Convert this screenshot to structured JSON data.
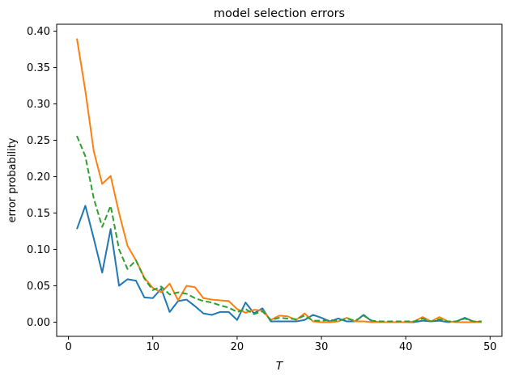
{
  "figure": {
    "title": "model selection errors",
    "xlabel": "T",
    "ylabel": "error probability"
  },
  "chart_data": {
    "type": "line",
    "title": "model selection errors",
    "xlabel": "T",
    "ylabel": "error probability",
    "xlim": [
      -1.4,
      51.4
    ],
    "ylim": [
      -0.0195,
      0.4095
    ],
    "x_tick_values": [
      0,
      10,
      20,
      30,
      40,
      50
    ],
    "x_tick_labels": [
      "0",
      "10",
      "20",
      "30",
      "40",
      "50"
    ],
    "y_tick_values": [
      0.0,
      0.05,
      0.1,
      0.15,
      0.2,
      0.25,
      0.3,
      0.35,
      0.4
    ],
    "y_tick_labels": [
      "0.00",
      "0.05",
      "0.10",
      "0.15",
      "0.20",
      "0.25",
      "0.30",
      "0.35",
      "0.40"
    ],
    "grid": false,
    "legend_position": "none",
    "x": [
      1,
      2,
      3,
      4,
      5,
      6,
      7,
      8,
      9,
      10,
      11,
      12,
      13,
      14,
      15,
      16,
      17,
      18,
      19,
      20,
      21,
      22,
      23,
      24,
      25,
      26,
      27,
      28,
      29,
      30,
      31,
      32,
      33,
      34,
      35,
      36,
      37,
      38,
      39,
      40,
      41,
      42,
      43,
      44,
      45,
      46,
      47,
      48,
      49
    ],
    "series": [
      {
        "name": "series-blue",
        "color": "#1f77b4",
        "style": "solid",
        "values": [
          0.128,
          0.16,
          0.115,
          0.068,
          0.128,
          0.05,
          0.059,
          0.057,
          0.034,
          0.033,
          0.046,
          0.014,
          0.029,
          0.031,
          0.022,
          0.012,
          0.01,
          0.014,
          0.014,
          0.003,
          0.027,
          0.012,
          0.019,
          0.001,
          0.001,
          0.001,
          0.001,
          0.003,
          0.01,
          0.006,
          0.001,
          0.005,
          0.001,
          0.001,
          0.01,
          0.001,
          0.0,
          0.0,
          0.0,
          0.0,
          0.0,
          0.002,
          0.001,
          0.002,
          0.0,
          0.001,
          0.006,
          0.001,
          0.0
        ]
      },
      {
        "name": "series-orange",
        "color": "#ff7f0e",
        "style": "solid",
        "values": [
          0.39,
          0.318,
          0.235,
          0.19,
          0.201,
          0.15,
          0.105,
          0.085,
          0.061,
          0.047,
          0.041,
          0.053,
          0.03,
          0.05,
          0.048,
          0.033,
          0.031,
          0.03,
          0.029,
          0.018,
          0.013,
          0.017,
          0.016,
          0.003,
          0.009,
          0.008,
          0.003,
          0.012,
          0.001,
          0.0,
          0.0,
          0.001,
          0.006,
          0.001,
          0.001,
          0.0,
          0.0,
          0.0,
          0.0,
          0.0,
          0.001,
          0.007,
          0.001,
          0.007,
          0.001,
          0.0,
          0.0,
          0.0,
          0.0
        ]
      },
      {
        "name": "series-green",
        "color": "#2ca02c",
        "style": "dashed",
        "values": [
          0.256,
          0.228,
          0.17,
          0.131,
          0.16,
          0.1,
          0.073,
          0.085,
          0.06,
          0.044,
          0.049,
          0.038,
          0.041,
          0.039,
          0.033,
          0.029,
          0.027,
          0.023,
          0.02,
          0.014,
          0.018,
          0.011,
          0.015,
          0.003,
          0.006,
          0.005,
          0.004,
          0.009,
          0.002,
          0.002,
          0.003,
          0.002,
          0.005,
          0.002,
          0.009,
          0.002,
          0.001,
          0.001,
          0.001,
          0.001,
          0.001,
          0.005,
          0.001,
          0.004,
          0.001,
          0.001,
          0.005,
          0.001,
          0.001
        ]
      }
    ]
  }
}
